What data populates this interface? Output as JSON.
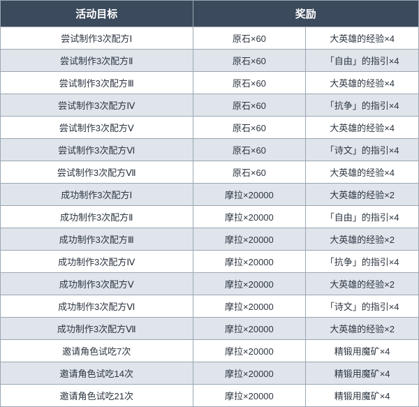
{
  "table": {
    "header_bg": "#3b4a5c",
    "header_fg": "#ffffff",
    "border_color": "#9aa6b2",
    "row_bg_odd": "#ffffff",
    "row_bg_even": "#dfe5eb",
    "cell_fg": "#2c3540",
    "header_fontsize": 15,
    "cell_fontsize": 13,
    "columns": {
      "goal": "活动目标",
      "reward": "奖励"
    },
    "rows": [
      {
        "goal": "尝试制作3次配方Ⅰ",
        "r1": "原石×60",
        "r2": "大英雄的经验×4"
      },
      {
        "goal": "尝试制作3次配方Ⅱ",
        "r1": "原石×60",
        "r2": "「自由」的指引×4"
      },
      {
        "goal": "尝试制作3次配方Ⅲ",
        "r1": "原石×60",
        "r2": "大英雄的经验×4"
      },
      {
        "goal": "尝试制作3次配方Ⅳ",
        "r1": "原石×60",
        "r2": "「抗争」的指引×4"
      },
      {
        "goal": "尝试制作3次配方Ⅴ",
        "r1": "原石×60",
        "r2": "大英雄的经验×4"
      },
      {
        "goal": "尝试制作3次配方Ⅵ",
        "r1": "原石×60",
        "r2": "「诗文」的指引×4"
      },
      {
        "goal": "尝试制作3次配方Ⅶ",
        "r1": "原石×60",
        "r2": "大英雄的经验×4"
      },
      {
        "goal": "成功制作3次配方Ⅰ",
        "r1": "摩拉×20000",
        "r2": "大英雄的经验×2"
      },
      {
        "goal": "成功制作3次配方Ⅱ",
        "r1": "摩拉×20000",
        "r2": "「自由」的指引×4"
      },
      {
        "goal": "成功制作3次配方Ⅲ",
        "r1": "摩拉×20000",
        "r2": "大英雄的经验×2"
      },
      {
        "goal": "成功制作3次配方Ⅳ",
        "r1": "摩拉×20000",
        "r2": "「抗争」的指引×4"
      },
      {
        "goal": "成功制作3次配方Ⅴ",
        "r1": "摩拉×20000",
        "r2": "大英雄的经验×2"
      },
      {
        "goal": "成功制作3次配方Ⅵ",
        "r1": "摩拉×20000",
        "r2": "「诗文」的指引×4"
      },
      {
        "goal": "成功制作3次配方Ⅶ",
        "r1": "摩拉×20000",
        "r2": "大英雄的经验×2"
      },
      {
        "goal": "邀请角色试吃7次",
        "r1": "摩拉×20000",
        "r2": "精锻用魔矿×4"
      },
      {
        "goal": "邀请角色试吃14次",
        "r1": "摩拉×20000",
        "r2": "精锻用魔矿×4"
      },
      {
        "goal": "邀请角色试吃21次",
        "r1": "摩拉×20000",
        "r2": "精锻用魔矿×4"
      }
    ]
  }
}
